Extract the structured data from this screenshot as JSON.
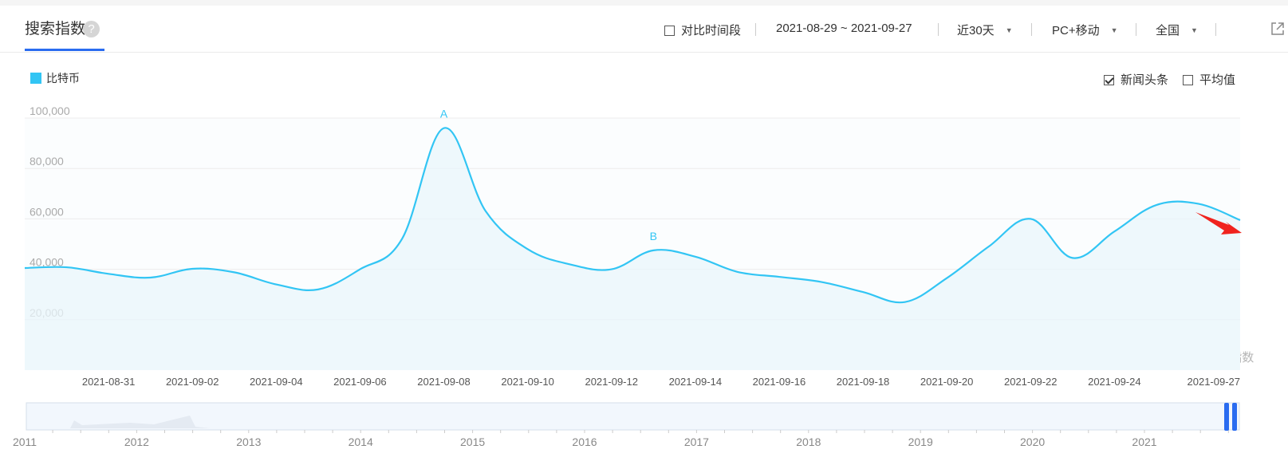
{
  "header": {
    "title": "搜索指数",
    "help_icon": "?",
    "compare_label": "对比时间段",
    "date_range": "2021-08-29 ~ 2021-09-27",
    "period": "近30天",
    "device": "PC+移动",
    "region": "全国"
  },
  "legend": {
    "label": "比特币",
    "color": "#32c5f4"
  },
  "options": {
    "news_label": "新闻头条",
    "news_checked": true,
    "avg_label": "平均值",
    "avg_checked": false
  },
  "watermark": "@百度指数",
  "chart_data": {
    "type": "area",
    "ylim": [
      0,
      100000
    ],
    "yticks": [
      "20,000",
      "40,000",
      "60,000",
      "80,000",
      "100,000"
    ],
    "x": [
      "2021-08-29",
      "2021-08-30",
      "2021-08-31",
      "2021-09-01",
      "2021-09-02",
      "2021-09-03",
      "2021-09-04",
      "2021-09-05",
      "2021-09-06",
      "2021-09-07",
      "2021-09-08",
      "2021-09-09",
      "2021-09-10",
      "2021-09-11",
      "2021-09-12",
      "2021-09-13",
      "2021-09-14",
      "2021-09-15",
      "2021-09-16",
      "2021-09-17",
      "2021-09-18",
      "2021-09-19",
      "2021-09-20",
      "2021-09-21",
      "2021-09-22",
      "2021-09-23",
      "2021-09-24",
      "2021-09-25",
      "2021-09-26",
      "2021-09-27"
    ],
    "xticks": [
      "2021-08-31",
      "2021-09-02",
      "2021-09-04",
      "2021-09-06",
      "2021-09-08",
      "2021-09-10",
      "2021-09-12",
      "2021-09-14",
      "2021-09-16",
      "2021-09-18",
      "2021-09-20",
      "2021-09-22",
      "2021-09-24",
      "2021-09-27"
    ],
    "series": [
      {
        "name": "比特币",
        "color": "#32c5f4",
        "values": [
          40500,
          40800,
          38200,
          36700,
          40200,
          38800,
          34000,
          32000,
          40000,
          52000,
          96000,
          63000,
          48000,
          42000,
          40000,
          47500,
          45000,
          39000,
          37000,
          35000,
          31000,
          27000,
          36500,
          49000,
          60000,
          44500,
          55000,
          65500,
          66000,
          59500
        ]
      }
    ],
    "annotations": [
      {
        "label": "A",
        "x": "2021-09-08"
      },
      {
        "label": "B",
        "x": "2021-09-13"
      }
    ],
    "overview": {
      "years": [
        "2011",
        "2012",
        "2013",
        "2014",
        "2015",
        "2016",
        "2017",
        "2018",
        "2019",
        "2020",
        "2021"
      ]
    }
  }
}
